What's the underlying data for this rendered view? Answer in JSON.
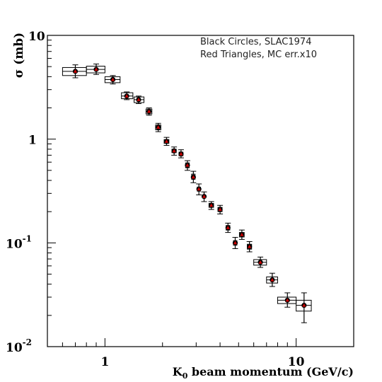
{
  "chart_data": {
    "type": "scatter",
    "title": "",
    "ylabel": "σ (mb)",
    "xlabel_main": "K",
    "xlabel_sub": "0",
    "xlabel_rest": " beam momentum (GeV/c)",
    "xscale": "log",
    "yscale": "log",
    "xlim": [
      0.5,
      20
    ],
    "ylim": [
      0.01,
      10
    ],
    "x_tick_labels": [
      "1",
      "10"
    ],
    "y_tick_labels": [
      {
        "base": "10",
        "exp": "-2",
        "value": 0.01
      },
      {
        "base": "10",
        "exp": "-1",
        "value": 0.1
      },
      {
        "base": "1",
        "exp": "",
        "value": 1
      },
      {
        "base": "10",
        "exp": "",
        "value": 10
      }
    ],
    "legend_lines": [
      "Black Circles, SLAC1974",
      "Red Triangles, MC err.x10"
    ],
    "legend_position": "top-right",
    "colors": {
      "data": "#000000",
      "mc": "#cc0000",
      "axis": "#000000"
    },
    "series": [
      {
        "name": "Black Circles, SLAC1974",
        "points": [
          {
            "x": 0.7,
            "y": 4.5,
            "lo": 3.9,
            "hi": 5.2,
            "xlo": 0.6,
            "xhi": 0.8,
            "blo": 4.1,
            "bhi": 4.9
          },
          {
            "x": 0.9,
            "y": 4.7,
            "lo": 4.2,
            "hi": 5.3,
            "xlo": 0.8,
            "xhi": 1.0,
            "blo": 4.35,
            "bhi": 5.05
          },
          {
            "x": 1.1,
            "y": 3.75,
            "lo": 3.4,
            "hi": 4.1,
            "xlo": 1.0,
            "xhi": 1.2,
            "blo": 3.5,
            "bhi": 4.0
          },
          {
            "x": 1.3,
            "y": 2.6,
            "lo": 2.4,
            "hi": 2.85,
            "xlo": 1.22,
            "xhi": 1.4,
            "blo": 2.45,
            "bhi": 2.8
          },
          {
            "x": 1.5,
            "y": 2.4,
            "lo": 2.2,
            "hi": 2.6,
            "xlo": 1.42,
            "xhi": 1.6,
            "blo": 2.25,
            "bhi": 2.55
          },
          {
            "x": 1.7,
            "y": 1.85,
            "lo": 1.7,
            "hi": 2.0,
            "xlo": 1.64,
            "xhi": 1.76,
            "blo": 1.75,
            "bhi": 1.95
          },
          {
            "x": 1.9,
            "y": 1.3,
            "lo": 1.18,
            "hi": 1.42,
            "xlo": 1.84,
            "xhi": 1.96,
            "blo": 1.23,
            "bhi": 1.37
          },
          {
            "x": 2.1,
            "y": 0.95,
            "lo": 0.87,
            "hi": 1.04,
            "xlo": 2.04,
            "xhi": 2.16,
            "blo": 0.91,
            "bhi": 0.99
          },
          {
            "x": 2.3,
            "y": 0.77,
            "lo": 0.7,
            "hi": 0.84,
            "xlo": 2.24,
            "xhi": 2.36,
            "blo": 0.74,
            "bhi": 0.8
          },
          {
            "x": 2.5,
            "y": 0.72,
            "lo": 0.66,
            "hi": 0.79,
            "xlo": 2.44,
            "xhi": 2.56,
            "blo": 0.69,
            "bhi": 0.75
          },
          {
            "x": 2.7,
            "y": 0.56,
            "lo": 0.5,
            "hi": 0.62,
            "xlo": 2.64,
            "xhi": 2.76,
            "blo": 0.53,
            "bhi": 0.59
          },
          {
            "x": 2.9,
            "y": 0.43,
            "lo": 0.38,
            "hi": 0.49,
            "xlo": 2.84,
            "xhi": 2.96,
            "blo": 0.41,
            "bhi": 0.46
          },
          {
            "x": 3.1,
            "y": 0.33,
            "lo": 0.29,
            "hi": 0.37,
            "xlo": 3.04,
            "xhi": 3.16,
            "blo": 0.315,
            "bhi": 0.345
          },
          {
            "x": 3.3,
            "y": 0.28,
            "lo": 0.25,
            "hi": 0.31,
            "xlo": 3.24,
            "xhi": 3.36,
            "blo": 0.27,
            "bhi": 0.29
          },
          {
            "x": 3.6,
            "y": 0.23,
            "lo": 0.21,
            "hi": 0.25,
            "xlo": 3.5,
            "xhi": 3.7,
            "blo": 0.22,
            "bhi": 0.24
          },
          {
            "x": 4.0,
            "y": 0.21,
            "lo": 0.19,
            "hi": 0.23,
            "xlo": 3.9,
            "xhi": 4.1,
            "blo": 0.2,
            "bhi": 0.22
          },
          {
            "x": 4.4,
            "y": 0.14,
            "lo": 0.126,
            "hi": 0.155,
            "xlo": 4.3,
            "xhi": 4.5,
            "blo": 0.133,
            "bhi": 0.147
          },
          {
            "x": 4.8,
            "y": 0.1,
            "lo": 0.088,
            "hi": 0.113,
            "xlo": 4.7,
            "xhi": 4.9,
            "blo": 0.095,
            "bhi": 0.105
          },
          {
            "x": 5.2,
            "y": 0.12,
            "lo": 0.108,
            "hi": 0.133,
            "xlo": 5.05,
            "xhi": 5.35,
            "blo": 0.114,
            "bhi": 0.126
          },
          {
            "x": 5.7,
            "y": 0.092,
            "lo": 0.082,
            "hi": 0.103,
            "xlo": 5.55,
            "xhi": 5.85,
            "blo": 0.087,
            "bhi": 0.097
          },
          {
            "x": 6.5,
            "y": 0.065,
            "lo": 0.058,
            "hi": 0.073,
            "xlo": 6.0,
            "xhi": 7.0,
            "blo": 0.061,
            "bhi": 0.069
          },
          {
            "x": 7.5,
            "y": 0.044,
            "lo": 0.038,
            "hi": 0.051,
            "xlo": 7.0,
            "xhi": 8.0,
            "blo": 0.041,
            "bhi": 0.047
          },
          {
            "x": 9.0,
            "y": 0.028,
            "lo": 0.024,
            "hi": 0.033,
            "xlo": 8.0,
            "xhi": 10.0,
            "blo": 0.026,
            "bhi": 0.03
          },
          {
            "x": 11.0,
            "y": 0.025,
            "lo": 0.017,
            "hi": 0.033,
            "xlo": 10.0,
            "xhi": 12.0,
            "blo": 0.022,
            "bhi": 0.028
          }
        ]
      },
      {
        "name": "Red Triangles, MC err.x10",
        "x": [
          0.7,
          0.9,
          1.1,
          1.3,
          1.5,
          1.7,
          1.9,
          2.1,
          2.3,
          2.5,
          2.7,
          2.9,
          3.1,
          3.3,
          3.6,
          4.0,
          4.4,
          4.8,
          5.2,
          5.7,
          6.5,
          7.5,
          9.0,
          11.0
        ],
        "y": [
          4.5,
          4.7,
          3.75,
          2.6,
          2.4,
          1.85,
          1.3,
          0.95,
          0.77,
          0.72,
          0.56,
          0.43,
          0.33,
          0.28,
          0.23,
          0.21,
          0.14,
          0.1,
          0.12,
          0.092,
          0.065,
          0.044,
          0.028,
          0.025
        ]
      }
    ]
  }
}
